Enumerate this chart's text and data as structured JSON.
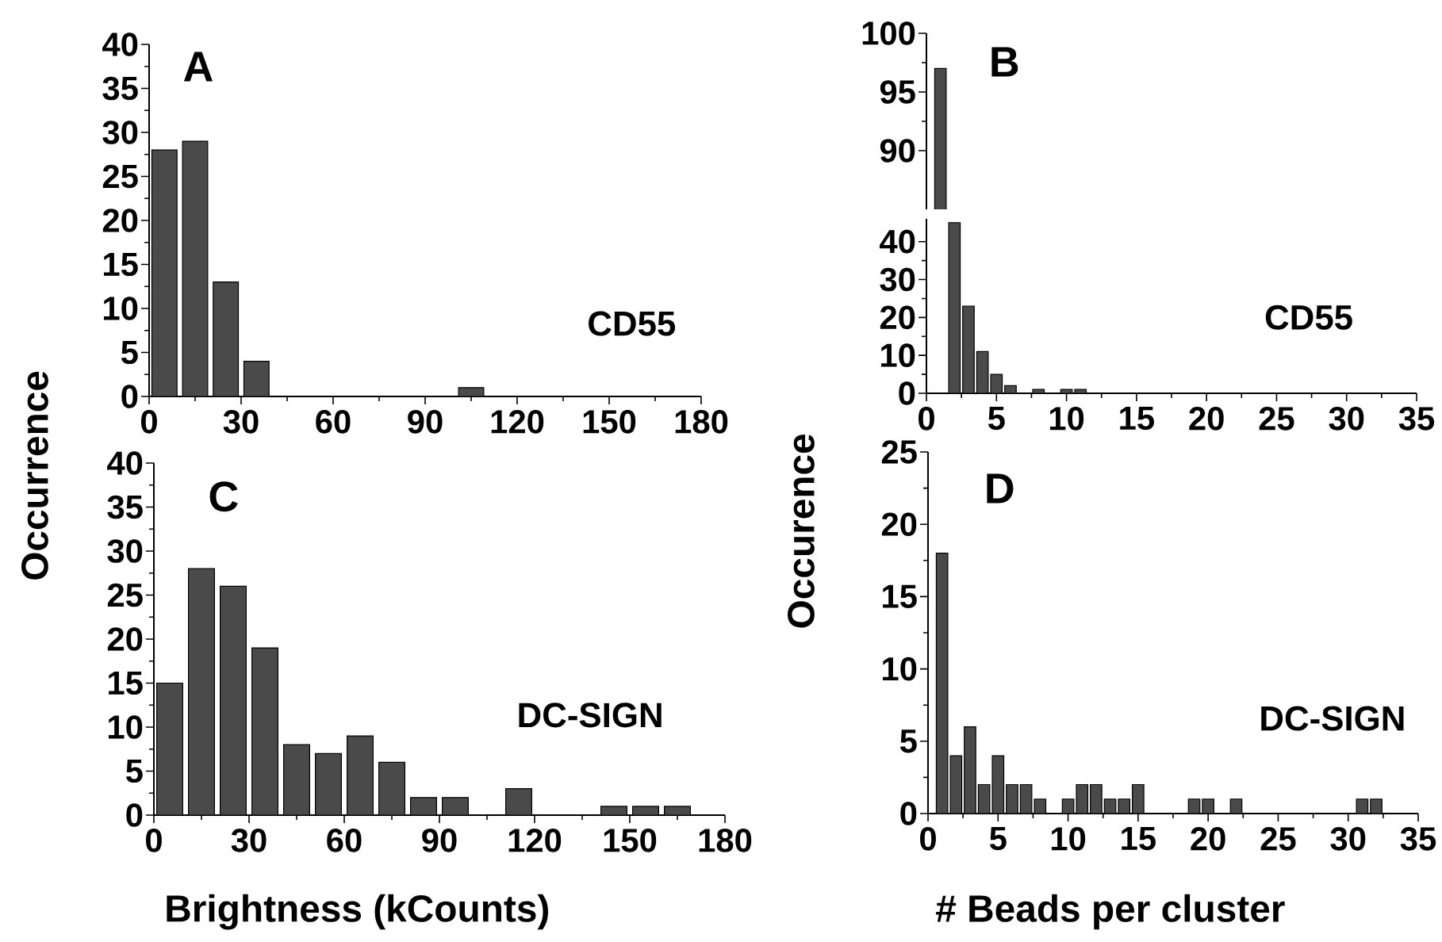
{
  "chart_data": [
    {
      "type": "histogram",
      "bins": [
        0,
        10,
        20,
        30,
        40,
        50,
        60,
        70,
        80,
        90,
        100,
        110
      ],
      "values": [
        28,
        29,
        13,
        4,
        0,
        0,
        0,
        0,
        0,
        0,
        1
      ],
      "color": "#4a4a4a",
      "xlim": [
        0,
        180
      ],
      "ylim": [
        0,
        40
      ],
      "xticks": [
        0,
        30,
        60,
        90,
        120,
        150,
        180
      ],
      "yticks": [
        0,
        5,
        10,
        15,
        20,
        25,
        30,
        35,
        40
      ],
      "ylabel": "Occurrence",
      "annotations": [
        "A",
        "CD55"
      ]
    },
    {
      "type": "histogram",
      "bins": [
        0.5,
        1.5
      ],
      "values": [
        97
      ],
      "color": "#4a4a4a",
      "xlim": [
        0,
        35
      ],
      "ylim": [
        85,
        100
      ],
      "yticks": [
        90,
        95,
        100
      ],
      "tick_labels": "y",
      "annotations": [
        "B"
      ]
    },
    {
      "type": "histogram",
      "bins": [
        0.5,
        1.5,
        2.5,
        3.5,
        4.5,
        5.5,
        6.5,
        7.5,
        8.5,
        9.5,
        10.5,
        11.5
      ],
      "values": [
        null,
        45,
        23,
        11,
        5,
        2,
        0,
        1,
        0,
        1,
        1
      ],
      "color": "#4a4a4a",
      "xlim": [
        0,
        35
      ],
      "ylim": [
        0,
        46
      ],
      "xticks": [
        0,
        5,
        10,
        15,
        20,
        25,
        30,
        35
      ],
      "yticks": [
        0,
        10,
        20,
        30,
        40
      ],
      "annotations": [
        "CD55"
      ]
    },
    {
      "type": "histogram",
      "bins": [
        0,
        10,
        20,
        30,
        40,
        50,
        60,
        70,
        80,
        90,
        100,
        110,
        120,
        130,
        140,
        150,
        160,
        170
      ],
      "values": [
        15,
        28,
        26,
        19,
        8,
        7,
        9,
        6,
        2,
        2,
        0,
        3,
        0,
        0,
        1,
        1,
        1
      ],
      "color": "#4a4a4a",
      "xlim": [
        0,
        180
      ],
      "ylim": [
        0,
        40
      ],
      "xticks": [
        0,
        30,
        60,
        90,
        120,
        150,
        180
      ],
      "yticks": [
        0,
        5,
        10,
        15,
        20,
        25,
        30,
        35,
        40
      ],
      "xlabel": "Brightness (kCounts)",
      "annotations": [
        "C",
        "DC-SIGN"
      ]
    },
    {
      "type": "histogram",
      "bins": [
        0.5,
        1.5,
        2.5,
        3.5,
        4.5,
        5.5,
        6.5,
        7.5,
        8.5,
        9.5,
        10.5,
        11.5,
        12.5,
        13.5,
        14.5,
        15.5,
        16.5,
        17.5,
        18.5,
        19.5,
        20.5,
        21.5,
        22.5,
        23.5,
        24.5,
        25.5,
        26.5,
        27.5,
        28.5,
        29.5,
        30.5,
        31.5,
        32.5
      ],
      "values": [
        18,
        4,
        6,
        2,
        4,
        2,
        2,
        1,
        0,
        1,
        2,
        2,
        1,
        1,
        2,
        0,
        0,
        0,
        1,
        1,
        0,
        1,
        0,
        0,
        0,
        0,
        0,
        0,
        0,
        0,
        1,
        1
      ],
      "color": "#4a4a4a",
      "xlim": [
        0,
        35
      ],
      "ylim": [
        0,
        25
      ],
      "xticks": [
        0,
        5,
        10,
        15,
        20,
        25,
        30,
        35
      ],
      "yticks": [
        0,
        5,
        10,
        15,
        20,
        25
      ],
      "xlabel": "# Beads per cluster",
      "ylabel": "Occurence",
      "annotations": [
        "D",
        "DC-SIGN"
      ]
    }
  ]
}
